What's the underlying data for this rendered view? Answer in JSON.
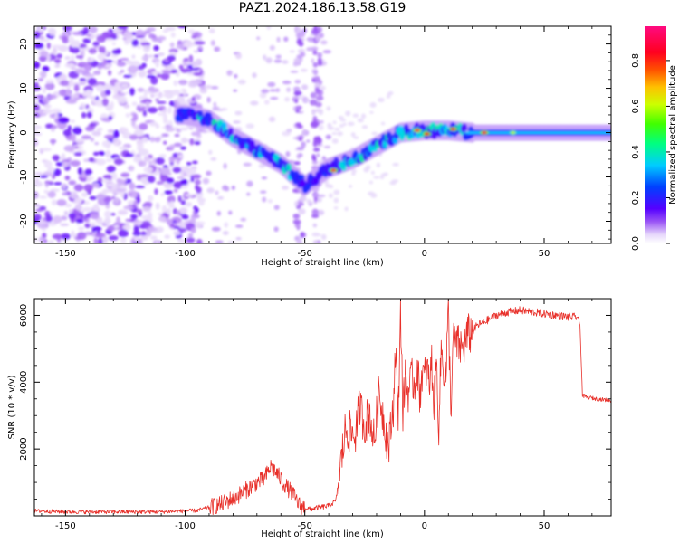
{
  "title": "PAZ1.2024.186.13.58.G19",
  "colors": {
    "snr_line": "#e8302a",
    "heatmap_faint": "#e3d4fa",
    "heatmap_mid": "#7d3cf0",
    "heatmap_strong": "#5e00ff"
  },
  "chart_data": [
    {
      "type": "heatmap",
      "title": "",
      "xlabel": "Height of straight line (km)",
      "ylabel": "Frequency (Hz)",
      "xlim": [
        -163,
        78
      ],
      "ylim": [
        -25,
        24
      ],
      "x_ticks": [
        -150,
        -100,
        -50,
        0,
        50
      ],
      "y_ticks": [
        -20,
        -10,
        0,
        10,
        20
      ],
      "colorbar": {
        "label": "Normalized spectral amplitude",
        "range": [
          0,
          0.95
        ],
        "ticks": [
          "0.0",
          "0.2",
          "0.4",
          "0.6",
          "0.8"
        ],
        "colormap": "gist_rainbow (magenta→red, white at low values)"
      },
      "ridge": [
        {
          "x": -100,
          "y": 4
        },
        {
          "x": -90,
          "y": 3
        },
        {
          "x": -80,
          "y": -1
        },
        {
          "x": -70,
          "y": -4
        },
        {
          "x": -60,
          "y": -7
        },
        {
          "x": -50,
          "y": -12
        },
        {
          "x": -40,
          "y": -8
        },
        {
          "x": -30,
          "y": -6
        },
        {
          "x": -20,
          "y": -3
        },
        {
          "x": -10,
          "y": 0
        },
        {
          "x": 0,
          "y": 0.5
        },
        {
          "x": 10,
          "y": 0.5
        },
        {
          "x": 20,
          "y": 0
        },
        {
          "x": 40,
          "y": 0
        },
        {
          "x": 78,
          "y": 0
        }
      ],
      "ridge_peaks": [
        {
          "x": -38,
          "y": -8.5,
          "amplitude": 0.9
        },
        {
          "x": -3,
          "y": 0.5,
          "amplitude": 0.9
        },
        {
          "x": 1,
          "y": -0.3,
          "amplitude": 0.85
        },
        {
          "x": 12,
          "y": 0.8,
          "amplitude": 0.85
        },
        {
          "x": 25,
          "y": 0,
          "amplitude": 0.9
        },
        {
          "x": 37,
          "y": 0,
          "amplitude": 0.6
        }
      ]
    },
    {
      "type": "line",
      "title": "",
      "xlabel": "Height of straight line (km)",
      "ylabel": "SNR (10 * v/v)",
      "xlim": [
        -163,
        78
      ],
      "ylim": [
        0,
        6500
      ],
      "x_ticks": [
        -150,
        -100,
        -50,
        0,
        50
      ],
      "y_ticks": [
        2000,
        4000,
        6000
      ],
      "series": [
        {
          "x": [
            -163,
            -150,
            -130,
            -110,
            -95,
            -85,
            -78,
            -74,
            -70,
            -67,
            -64,
            -61,
            -58,
            -55,
            -52,
            -48,
            -44,
            -40,
            -37,
            -35,
            -33,
            -31,
            -29,
            -27,
            -25,
            -23,
            -21,
            -19,
            -17,
            -15,
            -13,
            -12,
            -11,
            -10,
            -9,
            -8,
            -7,
            -6,
            -5,
            -4,
            -3,
            -2,
            -1,
            0,
            1,
            2,
            3,
            4,
            5,
            6,
            7,
            8,
            9,
            10,
            11,
            12,
            14,
            16,
            18,
            20,
            22,
            25,
            30,
            35,
            40,
            45,
            50,
            55,
            60,
            64,
            65,
            66,
            68,
            72,
            78
          ],
          "y": [
            150,
            120,
            120,
            120,
            160,
            350,
            600,
            800,
            1000,
            1100,
            1500,
            1200,
            900,
            650,
            300,
            200,
            250,
            300,
            450,
            1500,
            2600,
            2500,
            2400,
            3300,
            2700,
            3100,
            2200,
            3700,
            2900,
            2000,
            3300,
            5200,
            2600,
            6400,
            3000,
            4300,
            3700,
            3900,
            4100,
            3900,
            4500,
            3600,
            4300,
            4100,
            4500,
            3900,
            4600,
            3300,
            4600,
            2700,
            5000,
            4400,
            4200,
            6200,
            3100,
            5200,
            5100,
            5000,
            5400,
            5500,
            5700,
            5800,
            6000,
            6100,
            6150,
            6100,
            6050,
            6000,
            5950,
            5950,
            5700,
            3600,
            3550,
            3500,
            3450
          ]
        }
      ]
    }
  ]
}
